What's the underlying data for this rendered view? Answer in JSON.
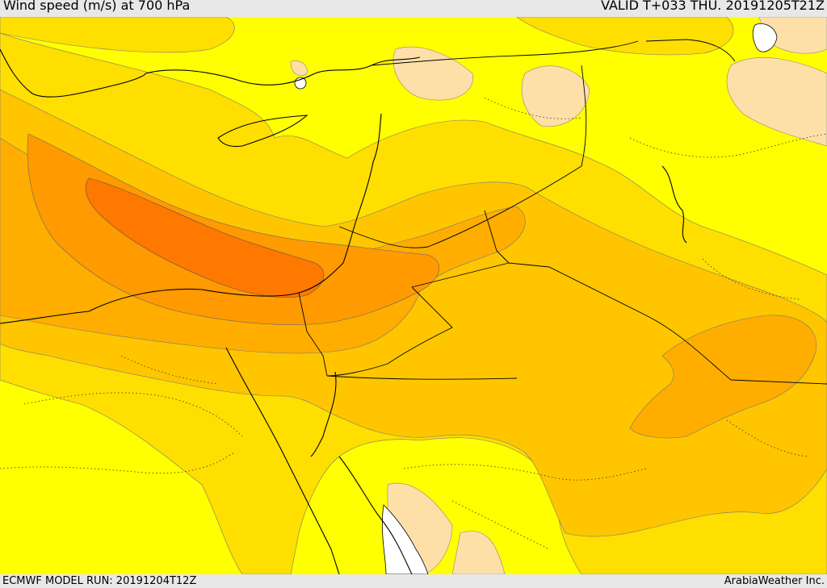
{
  "header": {
    "title": "Wind speed (m/s) at 700 hPa",
    "valid": "VALID T+033 THU. 20191205T21Z"
  },
  "footer": {
    "model_run": "ECMWF MODEL RUN: 20191204T12Z",
    "credit": "ArabiaWeather Inc."
  },
  "map": {
    "colors": {
      "background": "#ffff00",
      "light": "#ffdfa8",
      "band1": "#ffdf00",
      "band2": "#ffc600",
      "band3": "#ffae00",
      "band4": "#ff9a00",
      "band5": "#ff7800",
      "sea": "#ffffff",
      "border": "#000000"
    }
  }
}
